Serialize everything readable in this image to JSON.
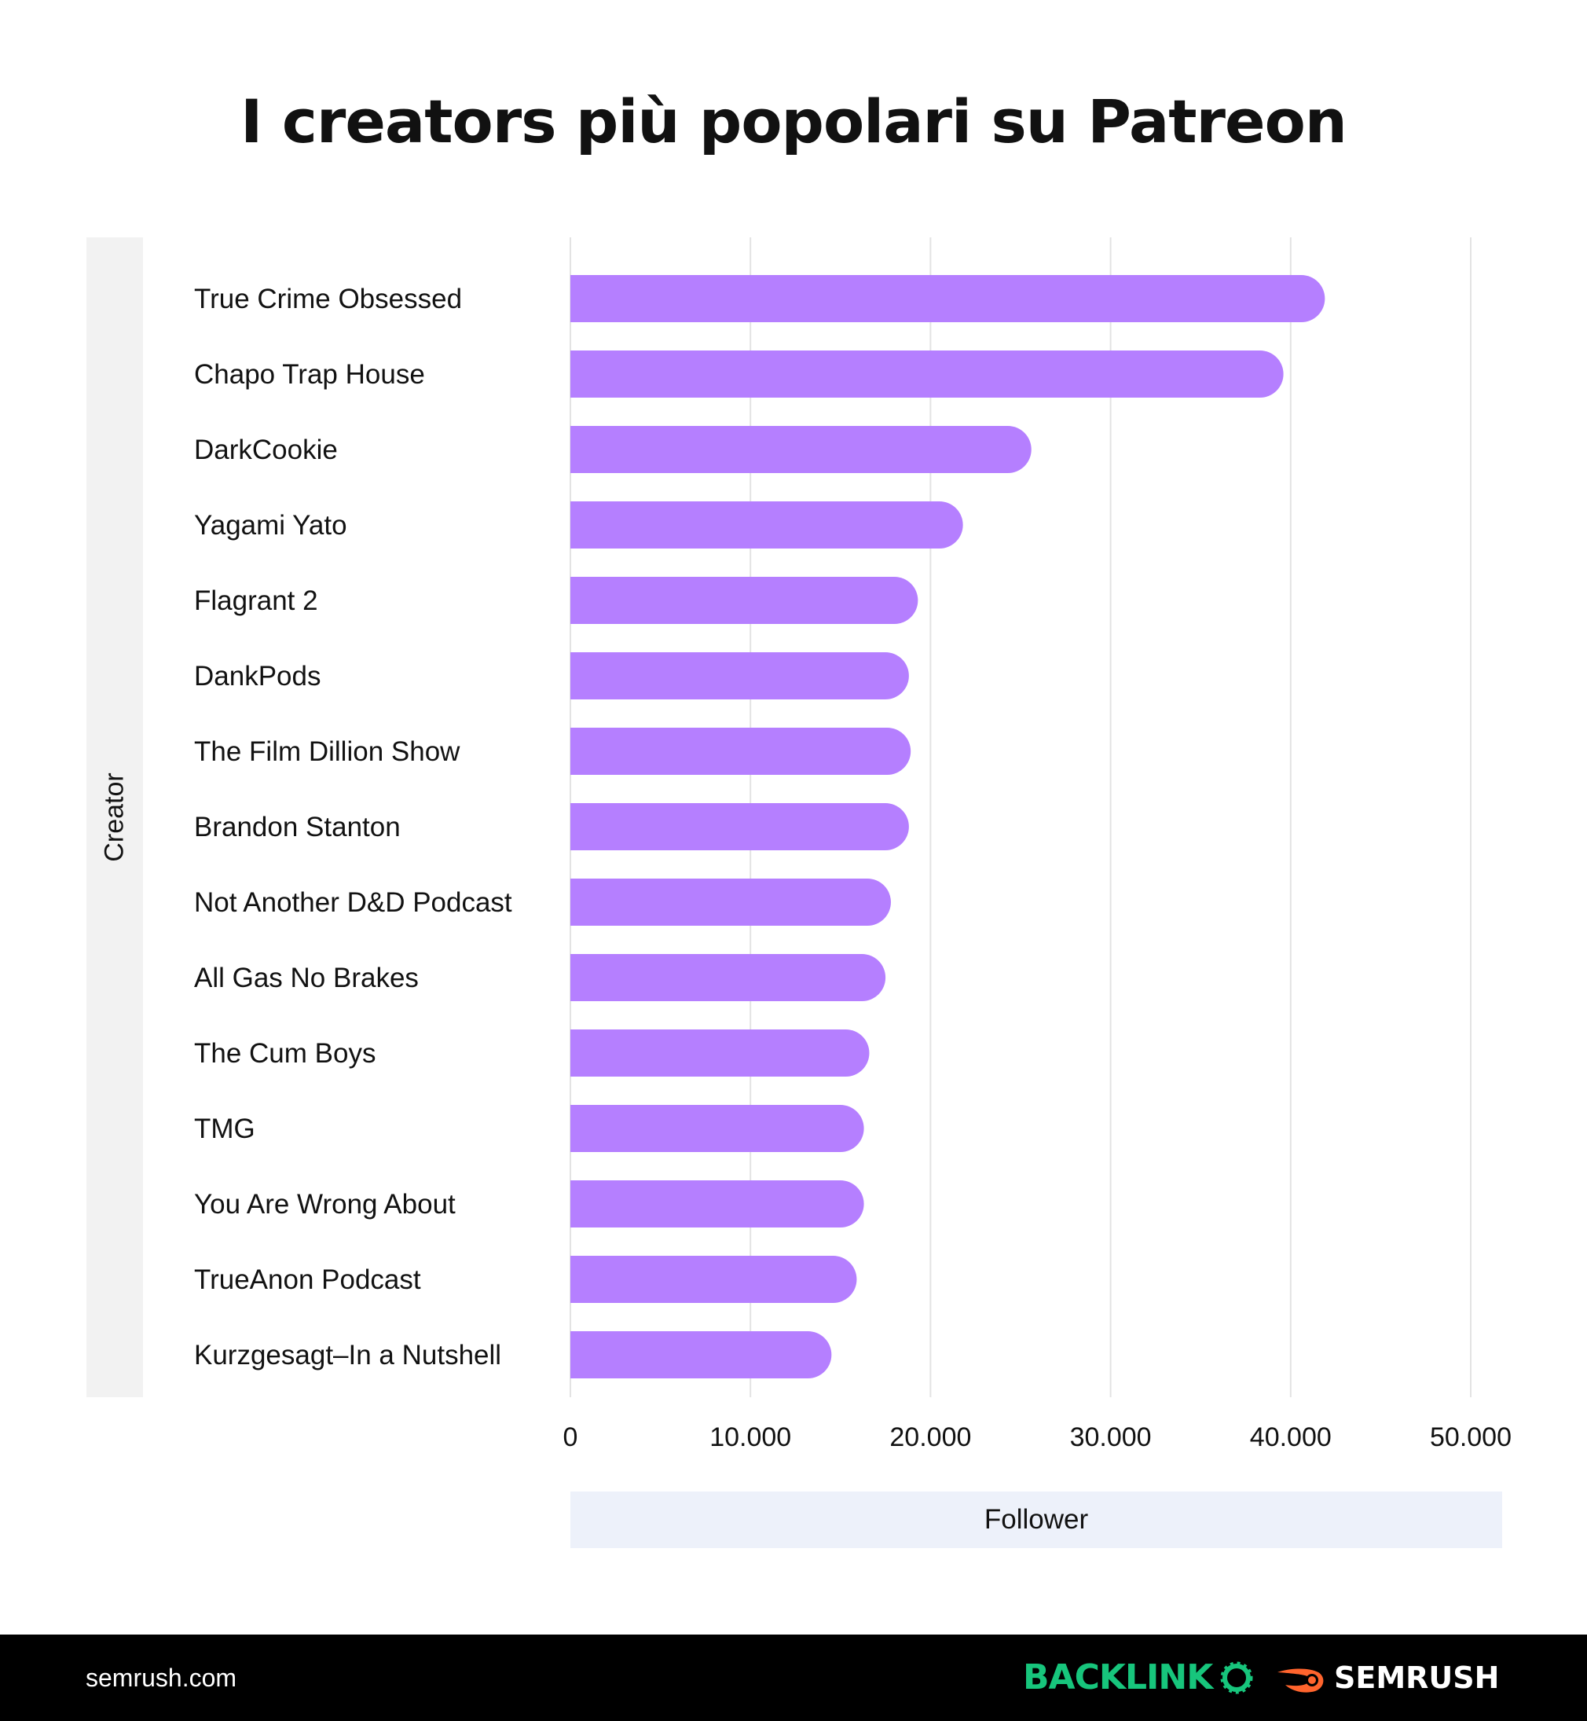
{
  "chart_data": {
    "type": "bar",
    "orientation": "horizontal",
    "title": "I creators più popolari su Patreon",
    "xlabel": "Follower",
    "ylabel": "Creator",
    "categories": [
      "True Crime Obsessed",
      "Chapo Trap House",
      "DarkCookie",
      "Yagami Yato",
      "Flagrant 2",
      "DankPods",
      "The Film Dillion Show",
      "Brandon Stanton",
      "Not Another D&D Podcast",
      "All Gas No Brakes",
      "The Cum Boys",
      "TMG",
      "You Are Wrong About",
      "TrueAnon Podcast",
      "Kurzgesagt–In a Nutshell"
    ],
    "values": [
      41900,
      39600,
      25600,
      21800,
      19300,
      18800,
      18900,
      18800,
      17800,
      17500,
      16600,
      16300,
      16300,
      15900,
      14500
    ],
    "xlim": [
      0,
      50000
    ],
    "xticks": [
      0,
      10000,
      20000,
      30000,
      40000,
      50000
    ],
    "xtick_labels": [
      "0",
      "10.000",
      "20.000",
      "30.000",
      "40.000",
      "50.000"
    ],
    "grid": "vertical",
    "bar_color": "#b57fff"
  },
  "footer": {
    "site": "semrush.com",
    "brand_left": "BACKLINK",
    "brand_right": "SEMRUSH"
  },
  "colors": {
    "backlinko": "#17c57c",
    "semrush_icon": "#ff642d",
    "footer_bg": "#000000"
  }
}
